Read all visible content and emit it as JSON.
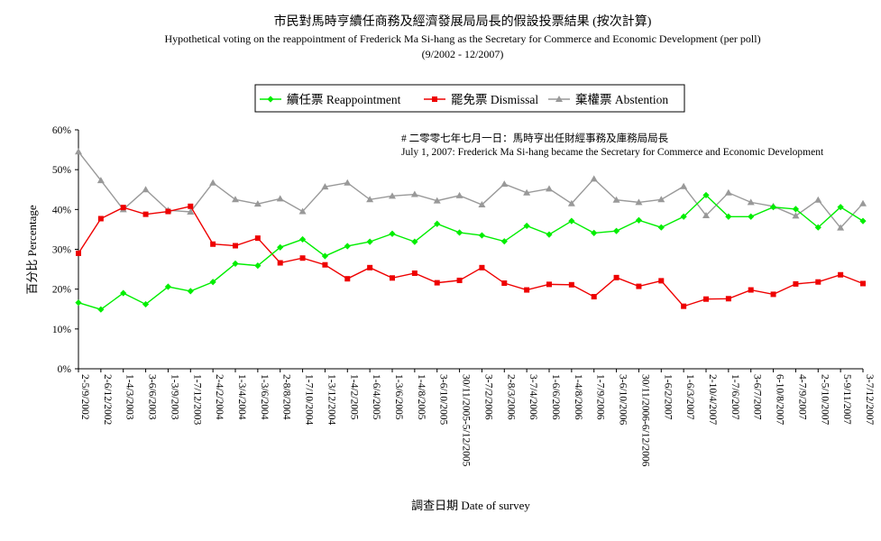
{
  "chart_data": {
    "type": "line",
    "title": "市民對馬時亨續任商務及經濟發展局局長的假設投票結果 (按次計算)",
    "subtitle": "Hypothetical voting on the reappointment of Frederick Ma Si-hang as the Secretary for Commerce and Economic Development (per poll)",
    "period": "(9/2002 - 12/2007)",
    "xlabel": "調查日期 Date of survey",
    "ylabel": "百分比 Percentage",
    "ylim": [
      0,
      60
    ],
    "yticks": [
      "0%",
      "10%",
      "20%",
      "30%",
      "40%",
      "50%",
      "60%"
    ],
    "grid": false,
    "legend_position": "top-center",
    "annotation": {
      "line1": "# 二零零七年七月一日：馬時亨出任財經事務及庫務局局長",
      "line2": "July 1, 2007: Frederick Ma Si-hang became the Secretary for Commerce and Economic Development"
    },
    "x": [
      "2-5/9/2002",
      "2-6/12/2002",
      "1-4/3/2003",
      "3-6/6/2003",
      "1-3/9/2003",
      "1-7/12/2003",
      "2-4/2/2004",
      "1-3/4/2004",
      "1-3/6/2004",
      "2-8/8/2004",
      "1-7/10/2004",
      "1-3/12/2004",
      "1-4/2/2005",
      "1-6/4/2005",
      "1-3/6/2005",
      "1-4/8/2005",
      "3-6/10/2005",
      "30/11/2005-5/12/2005",
      "3-7/2/2006",
      "2-8/3/2006",
      "3-7/4/2006",
      "1-6/6/2006",
      "1-4/8/2006",
      "1-7/9/2006",
      "3-6/10/2006",
      "30/11/2006-6/12/2006",
      "1-6/2/2007",
      "1-6/3/2007",
      "2-10/4/2007",
      "1-7/6/2007",
      "3-6/7/2007",
      "6-10/8/2007",
      "4-7/9/2007",
      "2-5/10/2007",
      "5-9/11/2007",
      "3-7/12/2007"
    ],
    "series": [
      {
        "name": "續任票 Reappointment",
        "color": "#00ee00",
        "marker": "diamond",
        "values": [
          16.6,
          14.9,
          19.0,
          16.2,
          20.6,
          19.5,
          21.8,
          26.4,
          25.9,
          30.5,
          32.5,
          28.3,
          30.8,
          31.9,
          33.9,
          31.9,
          36.4,
          34.2,
          33.5,
          32.0,
          35.9,
          33.7,
          37.1,
          34.1,
          34.6,
          37.3,
          35.5,
          38.2,
          43.6,
          38.2,
          38.2,
          40.6,
          40.1,
          35.5,
          40.6,
          37.1
        ]
      },
      {
        "name": "罷免票 Dismissal",
        "color": "#ee0000",
        "marker": "square",
        "values": [
          29.0,
          37.7,
          40.5,
          38.8,
          39.5,
          40.8,
          31.3,
          30.9,
          32.8,
          26.6,
          27.8,
          26.1,
          22.6,
          25.4,
          22.8,
          24.0,
          21.6,
          22.2,
          25.4,
          21.5,
          19.8,
          21.2,
          21.1,
          18.1,
          22.9,
          20.7,
          22.1,
          15.7,
          17.5,
          17.6,
          19.8,
          18.7,
          21.3,
          21.8,
          23.6,
          21.4
        ]
      },
      {
        "name": "棄權票 Abstention",
        "color": "#999999",
        "marker": "triangle",
        "values": [
          54.5,
          47.3,
          40.0,
          45.0,
          39.8,
          39.4,
          46.7,
          42.5,
          41.4,
          42.7,
          39.5,
          45.7,
          46.7,
          42.5,
          43.4,
          43.8,
          42.2,
          43.5,
          41.2,
          46.4,
          44.2,
          45.2,
          41.5,
          47.7,
          42.4,
          41.8,
          42.5,
          45.8,
          38.5,
          44.2,
          41.8,
          40.8,
          38.4,
          42.4,
          35.4,
          41.5
        ]
      }
    ]
  }
}
